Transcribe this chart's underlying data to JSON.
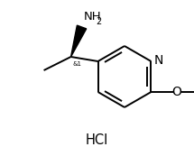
{
  "background_color": "#ffffff",
  "line_color": "#000000",
  "text_color": "#000000",
  "line_width": 1.4,
  "font_size": 8.5,
  "fig_width": 2.15,
  "fig_height": 1.73,
  "dpi": 100,
  "hcl_text": "HCl",
  "nh2_text": "NH",
  "nh2_sub": "2",
  "n_text": "N",
  "o_text": "O",
  "stereo_label": "&1"
}
